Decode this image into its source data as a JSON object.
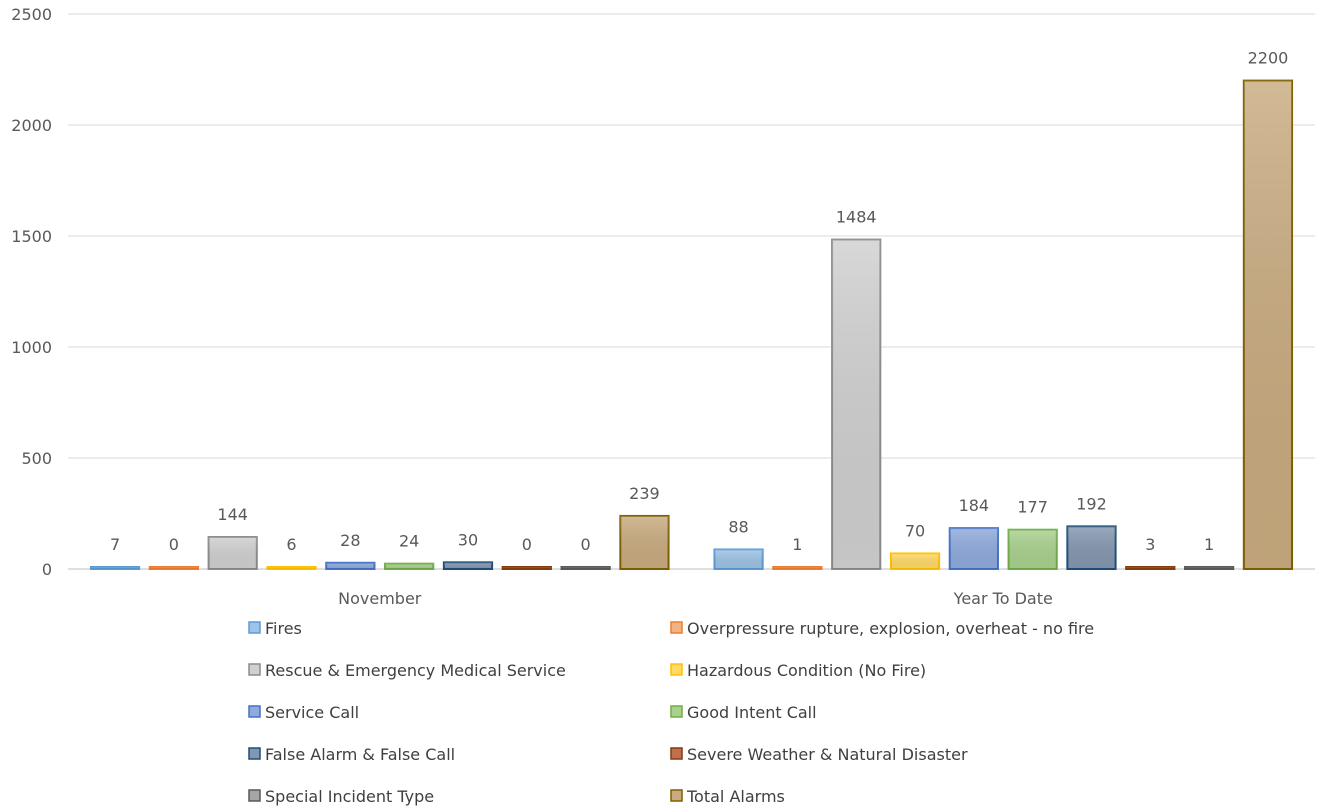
{
  "chart_data": {
    "type": "bar",
    "categories": [
      "November",
      "Year To Date"
    ],
    "ylim": [
      0,
      2500
    ],
    "yticks": [
      0,
      500,
      1000,
      1500,
      2000,
      2500
    ],
    "grid": true,
    "legend_position": "bottom",
    "data_labels": true,
    "series": [
      {
        "name": "Fires",
        "values": [
          7,
          88
        ],
        "fill": "#9dc3e6",
        "stroke": "#5b9bd5"
      },
      {
        "name": "Overpressure rupture, explosion, overheat - no fire",
        "values": [
          0,
          1
        ],
        "fill": "#f4b183",
        "stroke": "#ed7d31"
      },
      {
        "name": "Rescue & Emergency Medical Service",
        "values": [
          144,
          1484
        ],
        "fill": "#d0d0d0",
        "stroke": "#8c8c8c"
      },
      {
        "name": "Hazardous Condition (No Fire)",
        "values": [
          6,
          70
        ],
        "fill": "#ffd966",
        "stroke": "#ffc000"
      },
      {
        "name": "Service Call",
        "values": [
          28,
          184
        ],
        "fill": "#8faadc",
        "stroke": "#4472c4"
      },
      {
        "name": "Good Intent Call",
        "values": [
          24,
          177
        ],
        "fill": "#a9d18e",
        "stroke": "#70ad47"
      },
      {
        "name": "False Alarm & False Call",
        "values": [
          30,
          192
        ],
        "fill": "#8497b0",
        "stroke": "#1f4e79"
      },
      {
        "name": "Severe Weather & Natural Disaster",
        "values": [
          0,
          3
        ],
        "fill": "#c0704f",
        "stroke": "#843c0c"
      },
      {
        "name": "Special Incident Type",
        "values": [
          0,
          1
        ],
        "fill": "#a6a6a6",
        "stroke": "#595959"
      },
      {
        "name": "Total Alarms",
        "values": [
          239,
          2200
        ],
        "fill": "#c9ab7f",
        "stroke": "#7f6000"
      }
    ]
  }
}
